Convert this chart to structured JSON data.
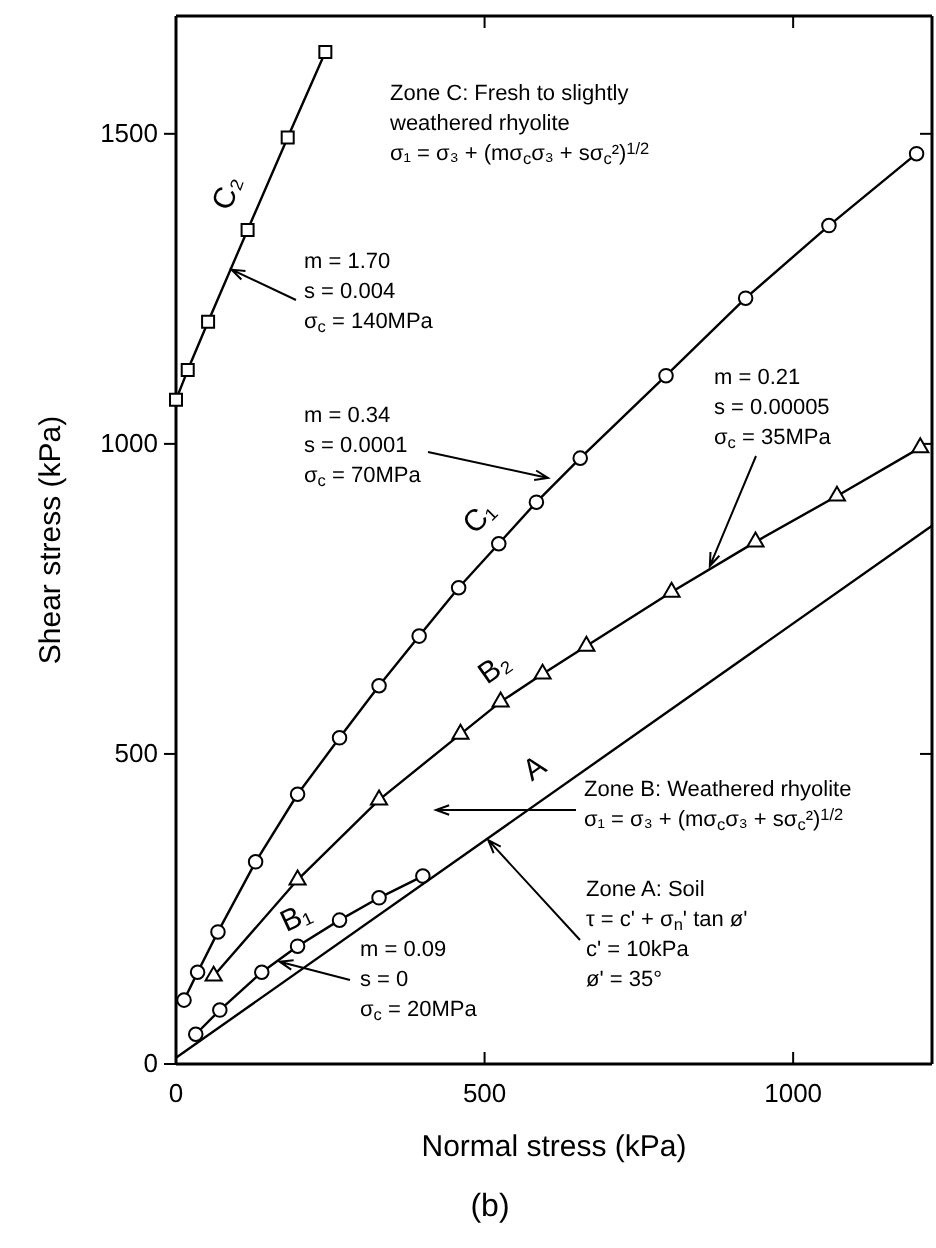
{
  "chart_data": {
    "type": "line",
    "xlabel": "Normal stress (kPa)",
    "ylabel": "Shear stress (kPa)",
    "xlim": [
      0,
      1225
    ],
    "ylim": [
      0,
      1690
    ],
    "xticks": [
      0,
      500,
      1000
    ],
    "yticks": [
      0,
      500,
      1000,
      1500
    ],
    "grid": false,
    "series": [
      {
        "name": "C₂",
        "color": "#000000",
        "marker": "square",
        "x": [
          0,
          19,
          52,
          116,
          181,
          242
        ],
        "values": [
          1071,
          1119,
          1197,
          1345,
          1494,
          1632
        ]
      },
      {
        "name": "C₁",
        "color": "#000000",
        "marker": "circle",
        "x": [
          13,
          35,
          68,
          129,
          197,
          265,
          329,
          394,
          458,
          523,
          584,
          655,
          794,
          923,
          1058,
          1200
        ],
        "values": [
          103,
          148,
          213,
          326,
          435,
          526,
          610,
          690,
          768,
          839,
          906,
          977,
          1110,
          1235,
          1352,
          1468
        ]
      },
      {
        "name": "B₂",
        "color": "#000000",
        "marker": "triangle",
        "x": [
          61,
          197,
          329,
          461,
          526,
          594,
          665,
          803,
          939,
          1071,
          1206
        ],
        "values": [
          142,
          297,
          426,
          532,
          584,
          629,
          674,
          761,
          842,
          916,
          994
        ]
      },
      {
        "name": "B₁",
        "color": "#000000",
        "marker": "circle",
        "x": [
          32,
          71,
          139,
          197,
          265,
          329,
          400
        ],
        "values": [
          48,
          87,
          148,
          190,
          232,
          268,
          303
        ]
      },
      {
        "name": "A",
        "color": "#000000",
        "marker": "none",
        "x": [
          0,
          1225
        ],
        "values": [
          10,
          868
        ]
      }
    ],
    "annotations": [
      "Zone C: Fresh to slightly\nweathered rhyolite\nσ₁ = σ₃ + (mσ$_{c}$σ₃ + sσ$_{c}$²)$^{1/2}$",
      {
        "text": "m = 1.70\ns = 0.004\nσ$_{c}$ = 140MPa",
        "x": 90,
        "y": 1281
      },
      "m = 0.34\ns = 0.0001\nσ$_{c}$ = 70MPa",
      {
        "text": "m = 0.21\ns = 0.00005\nσ$_{c}$ = 35MPa",
        "x": 865,
        "y": 803
      },
      "Zone B: Weathered rhyolite\nσ₁ = σ₃ + (mσ$_{c}$σ₃ + sσ$_{c}$²)$^{1/2}$",
      {
        "text": "Zone A: Soil\nτ = c' + σ$_{n}$' tan ø'\nc' = 10kPa\nø' = 35°",
        "x": 506,
        "y": 361
      },
      {
        "text": "m = 0.09\ns = 0\nσ$_{c}$ = 20MPa",
        "x": 168,
        "y": 165
      },
      "(b)"
    ]
  }
}
